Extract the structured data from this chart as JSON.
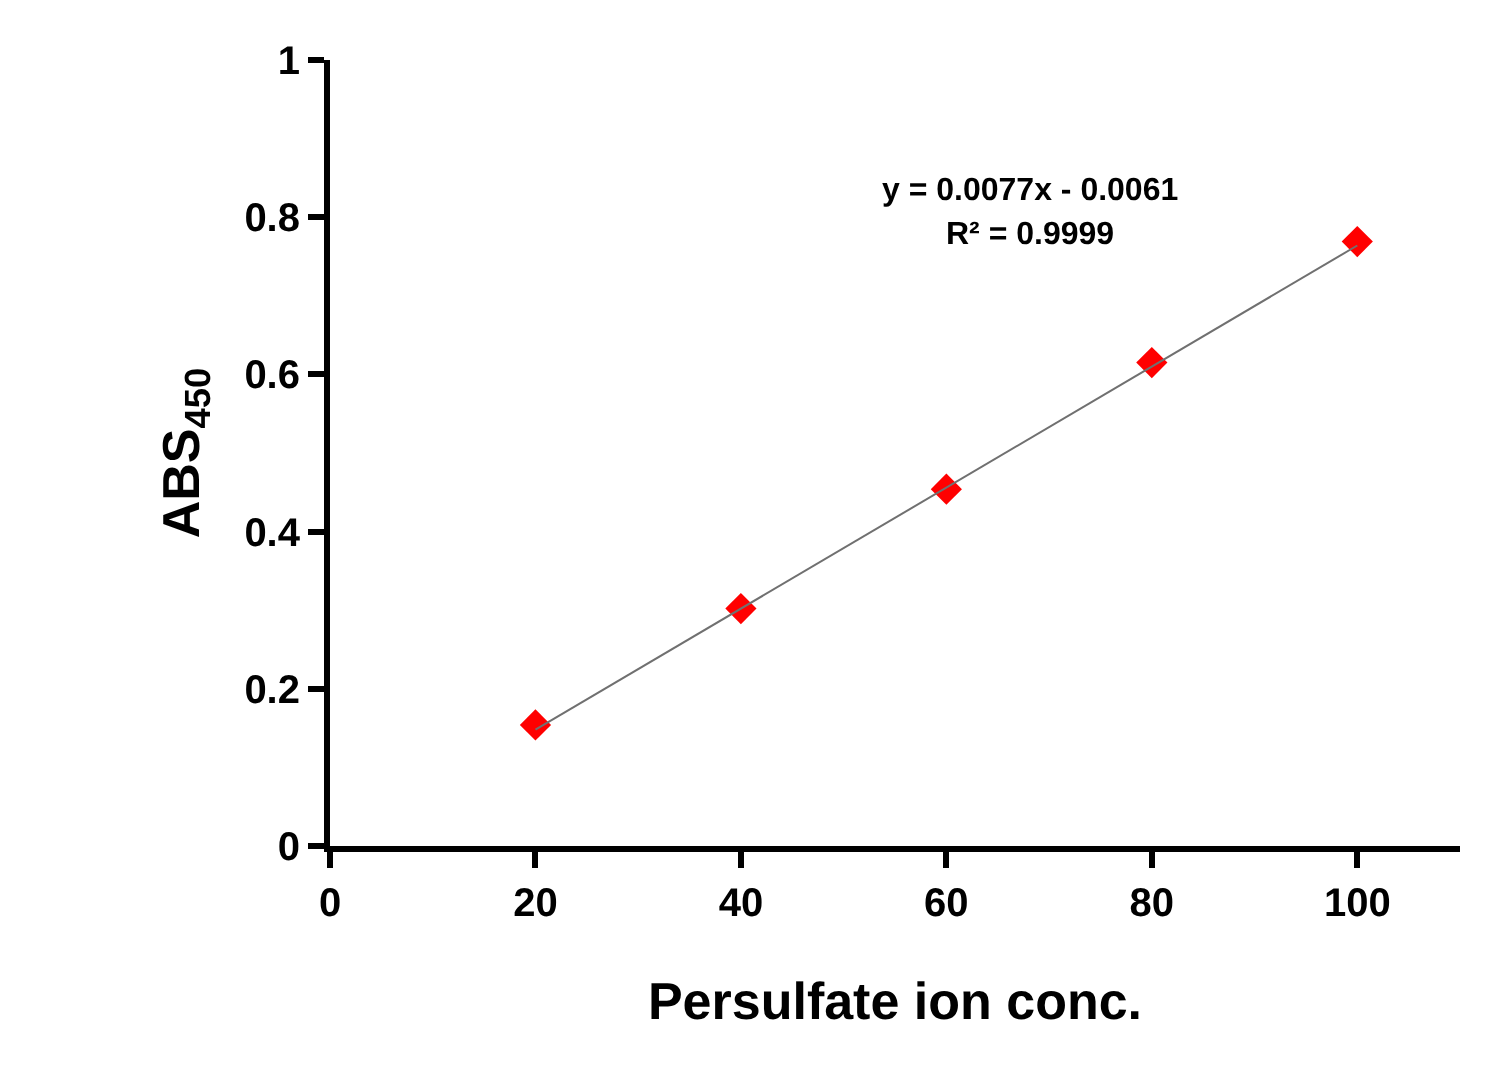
{
  "chart_data": {
    "type": "scatter",
    "xlabel": "Persulfate ion conc.",
    "ylabel": "ABS$_{450}$",
    "x": [
      20,
      40,
      60,
      80,
      100
    ],
    "series": [
      {
        "color": "#ff0000",
        "marker": "diamond",
        "values": [
          0.154,
          0.302,
          0.454,
          0.615,
          0.769
        ]
      },
      {
        "type": "line",
        "color": "#707070",
        "marker": "none",
        "x": [
          20,
          100
        ],
        "values": [
          0.148,
          0.764
        ]
      }
    ],
    "annotations": [
      "y = 0.0077x - 0.0061",
      "R² = 0.9999"
    ],
    "xlim": [
      0,
      110
    ],
    "xticks": [
      0,
      20,
      40,
      60,
      80,
      100
    ],
    "ylim": [
      0,
      1
    ],
    "yticks": [
      0,
      0.2,
      0.4,
      0.6,
      0.8,
      1
    ]
  }
}
